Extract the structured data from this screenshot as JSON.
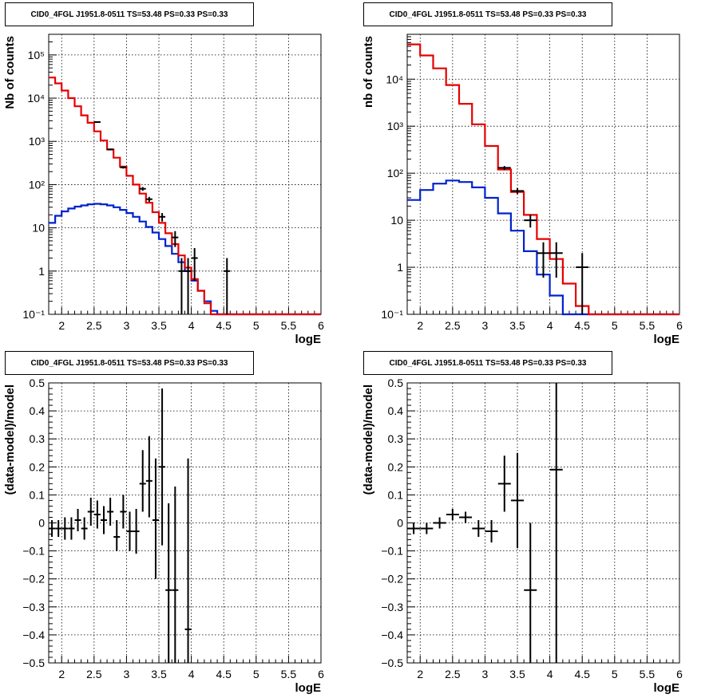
{
  "panels": [
    {
      "title": "CID0_4FGL J1951.8-0511 TS=53.48 PS=0.33 PS=0.33"
    },
    {
      "title": "CID0_4FGL J1951.8-0511 TS=53.48 PS=0.33 PS=0.33"
    },
    {
      "title": "CID0_4FGL J1951.8-0511 TS=53.48 PS=0.33 PS=0.33"
    },
    {
      "title": "CID0_4FGL J1951.8-0511 TS=53.48 PS=0.33 PS=0.33"
    }
  ],
  "colors": {
    "data": "#000000",
    "total_model": "#e60000",
    "source_model": "#0022cc",
    "grid": "#000000"
  },
  "chart_data": [
    {
      "type": "line",
      "title": "CID0_4FGL J1951.8-0511 TS=53.48 PS=0.33 PS=0.33",
      "xlabel": "logE",
      "ylabel": "Nb of counts",
      "xlim": [
        1.8,
        6
      ],
      "ylim": [
        0.1,
        300000
      ],
      "yscale": "log",
      "grid": true,
      "xticks": [
        "2",
        "2.5",
        "3",
        "3.5",
        "4",
        "4.5",
        "5",
        "5.5",
        "6"
      ],
      "yticks": [
        "10⁻¹",
        "1",
        "10",
        "10²",
        "10³",
        "10⁴",
        "10⁵"
      ],
      "bin_edges": [
        1.8,
        1.9,
        2.0,
        2.1,
        2.2,
        2.3,
        2.4,
        2.5,
        2.6,
        2.7,
        2.8,
        2.9,
        3.0,
        3.1,
        3.2,
        3.3,
        3.4,
        3.5,
        3.6,
        3.7,
        3.8,
        3.9,
        4.0,
        4.1,
        4.2,
        4.3,
        4.4,
        4.5,
        4.6,
        4.7,
        4.8,
        4.9,
        5.0,
        5.1,
        5.2,
        5.3,
        5.4,
        5.5,
        5.6,
        5.7,
        5.8,
        5.9,
        6.0
      ],
      "series": [
        {
          "values": [
            30000,
            22000,
            15000,
            10000,
            6500,
            4000,
            2700,
            1700,
            1050,
            650,
            420,
            260,
            160,
            100,
            62,
            38,
            23,
            13,
            7.5,
            4.2,
            2.3,
            1.2,
            0.65,
            0.35,
            0.18,
            0.1,
            0.1,
            0.1,
            0.1,
            0.1,
            0.1,
            0.1,
            0.1,
            0.1,
            0.1,
            0.1,
            0.1,
            0.1,
            0.1,
            0.1,
            0.1,
            0.1
          ]
        },
        {
          "values": [
            13,
            19,
            24,
            28,
            31,
            33,
            35,
            36,
            35,
            33,
            30,
            26,
            22,
            18,
            14,
            10.5,
            7.8,
            5.5,
            3.8,
            2.5,
            1.6,
            1.0,
            0.6,
            0.35,
            0.2,
            0.12,
            0.1,
            0.1,
            0.1,
            0.1,
            0.1,
            0.1,
            0.1,
            0.1,
            0.1,
            0.1,
            0.1,
            0.1,
            0.1,
            0.1,
            0.1,
            0.1
          ]
        },
        {
          "points": [
            {
              "x": 2.55,
              "y": 2800,
              "yerr": [
                2750,
                2850
              ]
            },
            {
              "x": 2.75,
              "y": 650,
              "yerr": [
                620,
                680
              ]
            },
            {
              "x": 2.95,
              "y": 250,
              "yerr": [
                235,
                265
              ]
            },
            {
              "x": 3.25,
              "y": 80,
              "yerr": [
                72,
                88
              ]
            },
            {
              "x": 3.35,
              "y": 46,
              "yerr": [
                40,
                52
              ]
            },
            {
              "x": 3.55,
              "y": 18,
              "yerr": [
                14,
                22
              ]
            },
            {
              "x": 3.75,
              "y": 6,
              "yerr": [
                3.6,
                8.4
              ]
            },
            {
              "x": 3.85,
              "y": 1,
              "yerr": [
                0.1,
                2.0
              ]
            },
            {
              "x": 3.95,
              "y": 1,
              "yerr": [
                0.1,
                2.0
              ]
            },
            {
              "x": 4.05,
              "y": 2,
              "yerr": [
                0.6,
                3.4
              ]
            },
            {
              "x": 4.55,
              "y": 1,
              "yerr": [
                0.1,
                2.0
              ]
            }
          ]
        }
      ]
    },
    {
      "type": "line",
      "title": "CID0_4FGL J1951.8-0511 TS=53.48 PS=0.33 PS=0.33",
      "xlabel": "logE",
      "ylabel": "nb of counts",
      "xlim": [
        1.8,
        6
      ],
      "ylim": [
        0.1,
        90000
      ],
      "yscale": "log",
      "grid": true,
      "xticks": [
        "2",
        "2.5",
        "3",
        "3.5",
        "4",
        "4.5",
        "5",
        "5.5",
        "6"
      ],
      "yticks": [
        "10⁻¹",
        "1",
        "10",
        "10²",
        "10³",
        "10⁴"
      ],
      "bin_edges": [
        1.8,
        2.0,
        2.2,
        2.4,
        2.6,
        2.8,
        3.0,
        3.2,
        3.4,
        3.6,
        3.8,
        4.0,
        4.2,
        4.4,
        4.6,
        4.8,
        5.0,
        5.2,
        5.4,
        5.6,
        5.8,
        6.0
      ],
      "series": [
        {
          "values": [
            55000,
            32000,
            17000,
            7500,
            3000,
            1100,
            380,
            120,
            40,
            13,
            4,
            1.5,
            0.45,
            0.15,
            0.1,
            0.1,
            0.1,
            0.1,
            0.1,
            0.1,
            0.1
          ]
        },
        {
          "values": [
            27,
            44,
            60,
            70,
            65,
            50,
            30,
            14,
            6,
            2.2,
            0.7,
            0.25,
            0.1,
            0.1,
            0.1,
            0.1,
            0.1,
            0.1,
            0.1,
            0.1,
            0.1
          ]
        },
        {
          "points": [
            {
              "x": 3.3,
              "y": 130,
              "yerr": [
                118,
                142
              ]
            },
            {
              "x": 3.5,
              "y": 42,
              "yerr": [
                36,
                48
              ]
            },
            {
              "x": 3.7,
              "y": 10,
              "yerr": [
                7,
                13
              ]
            },
            {
              "x": 3.9,
              "y": 2,
              "yerr": [
                0.6,
                3.4
              ]
            },
            {
              "x": 4.1,
              "y": 2,
              "yerr": [
                0.6,
                3.4
              ]
            },
            {
              "x": 4.5,
              "y": 1,
              "yerr": [
                0.1,
                2.0
              ]
            }
          ]
        }
      ]
    },
    {
      "type": "scatter",
      "title": "CID0_4FGL J1951.8-0511 TS=53.48 PS=0.33 PS=0.33",
      "xlabel": "logE",
      "ylabel": "(data-model)/model",
      "xlim": [
        1.8,
        6
      ],
      "ylim": [
        -0.5,
        0.5
      ],
      "grid": true,
      "xticks": [
        "2",
        "2.5",
        "3",
        "3.5",
        "4",
        "4.5",
        "5",
        "5.5",
        "6"
      ],
      "yticks": [
        "−0.5",
        "−0.4",
        "−0.3",
        "−0.2",
        "−0.1",
        "0",
        "0.1",
        "0.2",
        "0.3",
        "0.4",
        "0.5"
      ],
      "points": [
        {
          "x": 1.85,
          "y": -0.02,
          "ylo": -0.05,
          "yhi": 0.01
        },
        {
          "x": 1.95,
          "y": -0.02,
          "ylo": -0.05,
          "yhi": 0.01
        },
        {
          "x": 2.05,
          "y": -0.02,
          "ylo": -0.06,
          "yhi": 0.02
        },
        {
          "x": 2.15,
          "y": -0.02,
          "ylo": -0.06,
          "yhi": 0.02
        },
        {
          "x": 2.25,
          "y": 0.01,
          "ylo": -0.03,
          "yhi": 0.05
        },
        {
          "x": 2.35,
          "y": -0.02,
          "ylo": -0.06,
          "yhi": 0.02
        },
        {
          "x": 2.45,
          "y": 0.04,
          "ylo": -0.01,
          "yhi": 0.09
        },
        {
          "x": 2.55,
          "y": 0.03,
          "ylo": -0.02,
          "yhi": 0.08
        },
        {
          "x": 2.65,
          "y": 0.01,
          "ylo": -0.04,
          "yhi": 0.06
        },
        {
          "x": 2.75,
          "y": 0.04,
          "ylo": -0.01,
          "yhi": 0.09
        },
        {
          "x": 2.85,
          "y": -0.05,
          "ylo": -0.1,
          "yhi": 0.01
        },
        {
          "x": 2.95,
          "y": 0.04,
          "ylo": -0.02,
          "yhi": 0.1
        },
        {
          "x": 3.05,
          "y": -0.03,
          "ylo": -0.1,
          "yhi": 0.04
        },
        {
          "x": 3.15,
          "y": -0.03,
          "ylo": -0.11,
          "yhi": 0.05
        },
        {
          "x": 3.25,
          "y": 0.14,
          "ylo": 0.04,
          "yhi": 0.26
        },
        {
          "x": 3.35,
          "y": 0.15,
          "ylo": 0.02,
          "yhi": 0.31
        },
        {
          "x": 3.45,
          "y": 0.01,
          "ylo": -0.2,
          "yhi": 0.23
        },
        {
          "x": 3.55,
          "y": 0.2,
          "ylo": -0.08,
          "yhi": 0.48
        },
        {
          "x": 3.65,
          "y": -0.24,
          "ylo": -0.5,
          "yhi": 0.07
        },
        {
          "x": 3.75,
          "y": -0.24,
          "ylo": -0.5,
          "yhi": 0.13
        },
        {
          "x": 3.95,
          "y": -0.38,
          "ylo": -0.5,
          "yhi": 0.23
        }
      ]
    },
    {
      "type": "scatter",
      "title": "CID0_4FGL J1951.8-0511 TS=53.48 PS=0.33 PS=0.33",
      "xlabel": "logE",
      "ylabel": "(data-model)/model",
      "xlim": [
        1.8,
        6
      ],
      "ylim": [
        -0.5,
        0.5
      ],
      "grid": true,
      "xticks": [
        "2",
        "2.5",
        "3",
        "3.5",
        "4",
        "4.5",
        "5",
        "5.5",
        "6"
      ],
      "yticks": [
        "−0.5",
        "−0.4",
        "−0.3",
        "−0.2",
        "−0.1",
        "0",
        "0.1",
        "0.2",
        "0.3",
        "0.4",
        "0.5"
      ],
      "points": [
        {
          "x": 1.9,
          "y": -0.02,
          "ylo": -0.04,
          "yhi": 0.0
        },
        {
          "x": 2.1,
          "y": -0.02,
          "ylo": -0.04,
          "yhi": 0.0
        },
        {
          "x": 2.3,
          "y": 0.0,
          "ylo": -0.02,
          "yhi": 0.02
        },
        {
          "x": 2.5,
          "y": 0.03,
          "ylo": 0.01,
          "yhi": 0.05
        },
        {
          "x": 2.7,
          "y": 0.02,
          "ylo": 0.0,
          "yhi": 0.04
        },
        {
          "x": 2.9,
          "y": -0.02,
          "ylo": -0.05,
          "yhi": 0.01
        },
        {
          "x": 3.1,
          "y": -0.03,
          "ylo": -0.07,
          "yhi": 0.01
        },
        {
          "x": 3.3,
          "y": 0.14,
          "ylo": 0.04,
          "yhi": 0.24
        },
        {
          "x": 3.5,
          "y": 0.08,
          "ylo": -0.09,
          "yhi": 0.25
        },
        {
          "x": 3.7,
          "y": -0.24,
          "ylo": -0.5,
          "yhi": 0.0
        },
        {
          "x": 4.1,
          "y": 0.19,
          "ylo": -0.5,
          "yhi": 0.5
        }
      ]
    }
  ]
}
